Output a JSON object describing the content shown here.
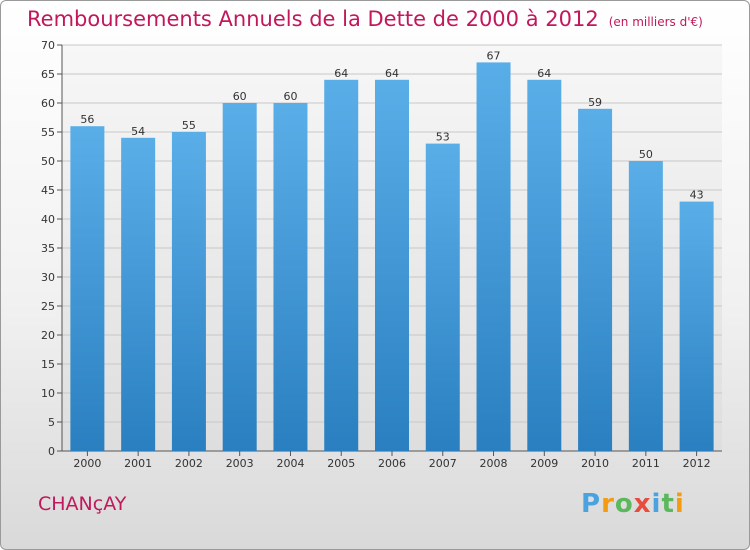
{
  "chart_data": {
    "type": "bar",
    "title": "Remboursements Annuels de la Dette de 2000 à 2012",
    "subtitle": "(en milliers d'€)",
    "categories": [
      "2000",
      "2001",
      "2002",
      "2003",
      "2004",
      "2005",
      "2006",
      "2007",
      "2008",
      "2009",
      "2010",
      "2011",
      "2012"
    ],
    "values": [
      56,
      54,
      55,
      60,
      60,
      64,
      64,
      53,
      67,
      64,
      59,
      50,
      43
    ],
    "ylim": [
      0,
      70
    ],
    "yticks": [
      0,
      5,
      10,
      15,
      20,
      25,
      30,
      35,
      40,
      45,
      50,
      55,
      60,
      65,
      70
    ],
    "grid": true,
    "bar_color_top": "#5aaee8",
    "bar_color_bottom": "#2a7fc0"
  },
  "place_name": "CHANçAY",
  "logo": {
    "letters": [
      "P",
      "r",
      "o",
      "x",
      "i",
      "t",
      "i"
    ],
    "colors": [
      "#4aa3df",
      "#f39c12",
      "#5cb85c",
      "#e74c3c",
      "#4aa3df",
      "#5cb85c",
      "#f39c12"
    ]
  }
}
